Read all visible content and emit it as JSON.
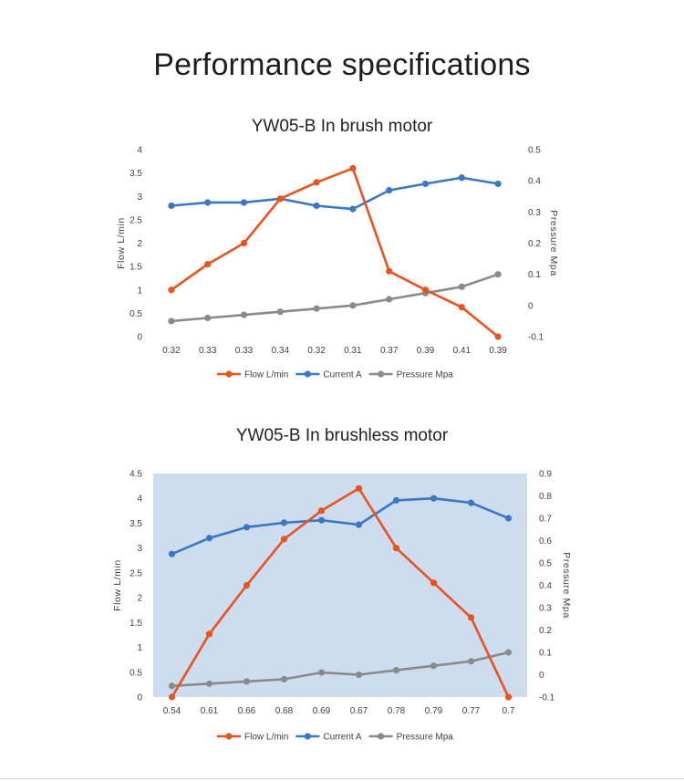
{
  "page": {
    "title": "Performance specifications"
  },
  "colors": {
    "flow": "#e8531f",
    "current": "#3a78c3",
    "pressure": "#8a8a8a",
    "plot_bg_chart2": "#cddcef"
  },
  "chart_data": [
    {
      "type": "line",
      "title": "YW05-B In brush motor",
      "categories": [
        "0.32",
        "0.33",
        "0.33",
        "0.34",
        "0.32",
        "0.31",
        "0.37",
        "0.39",
        "0.41",
        "0.39"
      ],
      "ylabel": "Flow  L/min",
      "y2label": "Pressure  Mpa",
      "ylim": [
        0,
        4
      ],
      "yticks": [
        "0",
        "0.5",
        "1",
        "1.5",
        "2",
        "2.5",
        "3",
        "3.5",
        "4"
      ],
      "y2lim": [
        -0.1,
        0.5
      ],
      "y2ticks": [
        "-0.1",
        "0",
        "0.1",
        "0.2",
        "0.3",
        "0.4",
        "0.5"
      ],
      "grid": false,
      "plot_background": false,
      "legend": "bottom",
      "series": [
        {
          "name": "Flow L/min",
          "axis": "left",
          "color": "#e8531f",
          "values": [
            1.0,
            1.55,
            2.0,
            2.95,
            3.3,
            3.6,
            1.4,
            1.0,
            0.63,
            0.0
          ]
        },
        {
          "name": "Current A",
          "axis": "left",
          "color": "#3a78c3",
          "values": [
            2.8,
            2.87,
            2.87,
            2.95,
            2.8,
            2.73,
            3.13,
            3.27,
            3.4,
            3.27
          ]
        },
        {
          "name": "Pressure Mpa",
          "axis": "right",
          "color": "#8a8a8a",
          "values": [
            -0.05,
            -0.04,
            -0.03,
            -0.02,
            -0.01,
            0.0,
            0.02,
            0.04,
            0.06,
            0.1
          ]
        }
      ]
    },
    {
      "type": "line",
      "title": "YW05-B In brushless motor",
      "categories": [
        "0.54",
        "0.61",
        "0.66",
        "0.68",
        "0.69",
        "0.67",
        "0.78",
        "0.79",
        "0.77",
        "0.7"
      ],
      "ylabel": "Flow  L/min",
      "y2label": "Pressure  Mpa",
      "ylim": [
        0,
        4.5
      ],
      "yticks": [
        "0",
        "0.5",
        "1",
        "1.5",
        "2",
        "2.5",
        "3",
        "3.5",
        "4",
        "4.5"
      ],
      "y2lim": [
        -0.1,
        0.9
      ],
      "y2ticks": [
        "-0.1",
        "0",
        "0.1",
        "0.2",
        "0.3",
        "0.4",
        "0.5",
        "0.6",
        "0.7",
        "0.8",
        "0.9"
      ],
      "grid": false,
      "plot_background": true,
      "legend": "bottom",
      "series": [
        {
          "name": "Flow L/min",
          "axis": "left",
          "color": "#e8531f",
          "values": [
            0.0,
            1.27,
            2.25,
            3.18,
            3.75,
            4.2,
            3.0,
            2.3,
            1.6,
            0.0
          ]
        },
        {
          "name": "Current A",
          "axis": "left",
          "color": "#3a78c3",
          "values": [
            2.88,
            3.2,
            3.42,
            3.51,
            3.56,
            3.47,
            3.96,
            4.0,
            3.91,
            3.6
          ]
        },
        {
          "name": "Pressure Mpa",
          "axis": "right",
          "color": "#8a8a8a",
          "values": [
            -0.05,
            -0.04,
            -0.03,
            -0.02,
            0.01,
            0.0,
            0.02,
            0.04,
            0.06,
            0.1
          ]
        }
      ]
    }
  ]
}
